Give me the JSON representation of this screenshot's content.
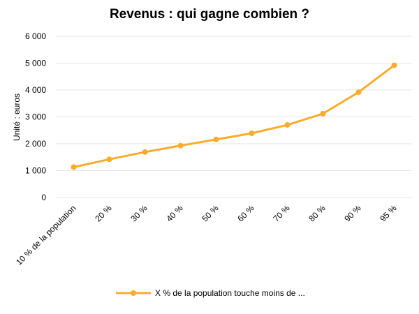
{
  "chart_data": {
    "type": "line",
    "title": "Revenus : qui gagne combien ?",
    "xlabel": "",
    "ylabel": "Unité : euros",
    "categories": [
      "10 % de la population",
      "20 %",
      "30 %",
      "40 %",
      "50 %",
      "60 %",
      "70 %",
      "80 %",
      "90 %",
      "95 %"
    ],
    "series": [
      {
        "name": "X % de la population touche moins de ...",
        "values": [
          1130,
          1420,
          1690,
          1930,
          2160,
          2390,
          2700,
          3120,
          3920,
          4920
        ]
      }
    ],
    "ylim": [
      0,
      6000
    ],
    "yticks": [
      0,
      1000,
      2000,
      3000,
      4000,
      5000,
      6000
    ],
    "ytick_labels": [
      "0",
      "1 000",
      "2 000",
      "3 000",
      "4 000",
      "5 000",
      "6 000"
    ],
    "grid": true,
    "legend_position": "bottom",
    "color": "#f8ac2c"
  }
}
